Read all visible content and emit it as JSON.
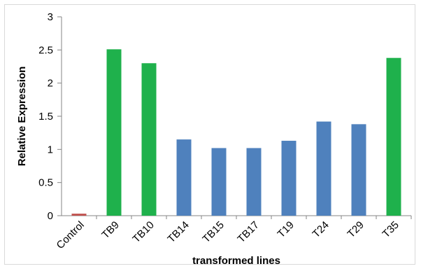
{
  "chart_data": {
    "type": "bar",
    "title": "",
    "xlabel": "transformed lines",
    "ylabel": "Relative Expression",
    "categories": [
      "Control",
      "TB9",
      "TB10",
      "TB14",
      "TB15",
      "TB17",
      "T19",
      "T24",
      "T29",
      "T35"
    ],
    "values": [
      0.03,
      2.51,
      2.3,
      1.15,
      1.02,
      1.02,
      1.13,
      1.42,
      1.38,
      2.38
    ],
    "bar_colors": [
      "#c0504d",
      "#1fb14c",
      "#1fb14c",
      "#4f81bd",
      "#4f81bd",
      "#4f81bd",
      "#4f81bd",
      "#4f81bd",
      "#4f81bd",
      "#1fb14c"
    ],
    "ylim": [
      0,
      3
    ],
    "yticks": [
      0,
      0.5,
      1,
      1.5,
      2,
      2.5,
      3
    ],
    "ytick_labels": [
      "0",
      "0.5",
      "1",
      "1.5",
      "2",
      "2.5",
      "3"
    ],
    "grid": false,
    "legend": "none"
  }
}
